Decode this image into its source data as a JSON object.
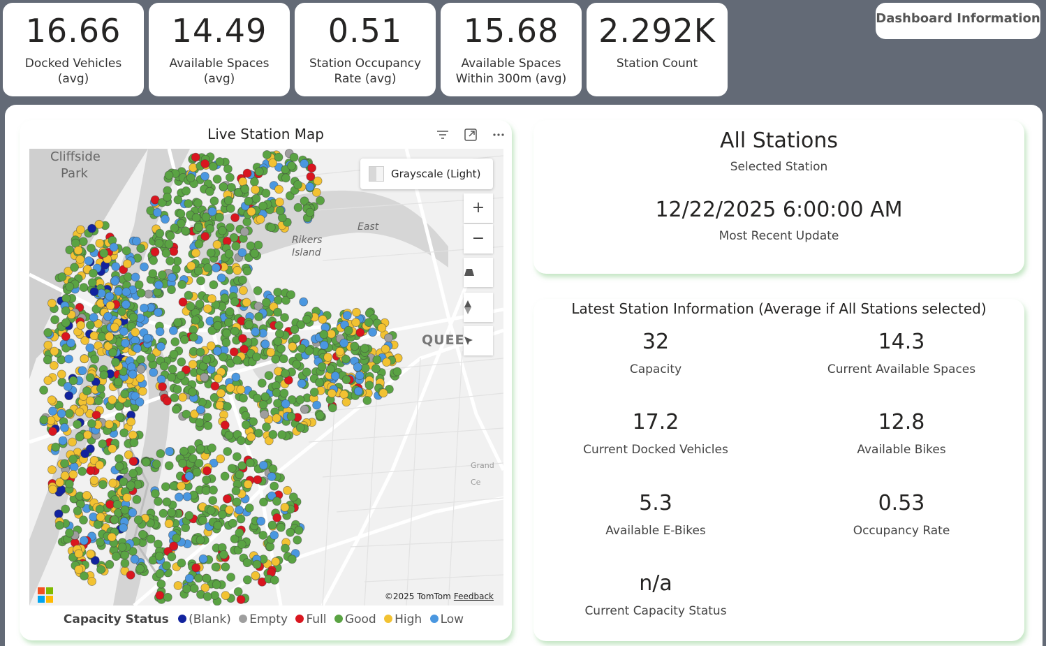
{
  "kpis": [
    {
      "value": "16.66",
      "label": "Docked Vehicles (avg)"
    },
    {
      "value": "14.49",
      "label": "Available Spaces (avg)"
    },
    {
      "value": "0.51",
      "label": "Station Occupancy Rate (avg)"
    },
    {
      "value": "15.68",
      "label": "Available Spaces Within 300m (avg)"
    },
    {
      "value": "2.292K",
      "label": "Station Count"
    }
  ],
  "dashboard_info_button": "Dashboard Information",
  "map_visual": {
    "title": "Live Station Map",
    "header_icons": [
      "filter-icon",
      "focus-mode-icon",
      "more-options-icon"
    ],
    "map_style_label": "Grayscale (Light)",
    "controls": [
      "zoom-in-icon",
      "zoom-out-icon",
      "pitch-icon",
      "compass-icon",
      "select-icon"
    ],
    "place_labels": {
      "cliffside": "Cliffside",
      "park": "Park",
      "rikers": "Rikers",
      "island": "Island",
      "east": "East",
      "queens": "QUEE",
      "grand": "Grand Ce"
    },
    "attribution": "©2025 TomTom",
    "feedback_link": "Feedback",
    "legend": {
      "title": "Capacity Status",
      "items": [
        {
          "label": "(Blank)",
          "color": "#12239e"
        },
        {
          "label": "Empty",
          "color": "#9e9e9e"
        },
        {
          "label": "Full",
          "color": "#d9161f"
        },
        {
          "label": "Good",
          "color": "#5aa343"
        },
        {
          "label": "High",
          "color": "#f2c232"
        },
        {
          "label": "Low",
          "color": "#4a97e0"
        }
      ]
    }
  },
  "selection": {
    "station": "All Stations",
    "station_caption": "Selected Station",
    "update_time": "12/22/2025 6:00:00 AM",
    "update_caption": "Most Recent Update"
  },
  "station_info": {
    "title": "Latest Station Information (Average if All Stations selected)",
    "metrics": [
      {
        "value": "32",
        "label": "Capacity"
      },
      {
        "value": "14.3",
        "label": "Current Available Spaces"
      },
      {
        "value": "17.2",
        "label": "Current Docked Vehicles"
      },
      {
        "value": "12.8",
        "label": "Available Bikes"
      },
      {
        "value": "5.3",
        "label": "Available E-Bikes"
      },
      {
        "value": "0.53",
        "label": "Occupancy Rate"
      },
      {
        "value": "n/a",
        "label": "Current Capacity Status"
      }
    ]
  }
}
